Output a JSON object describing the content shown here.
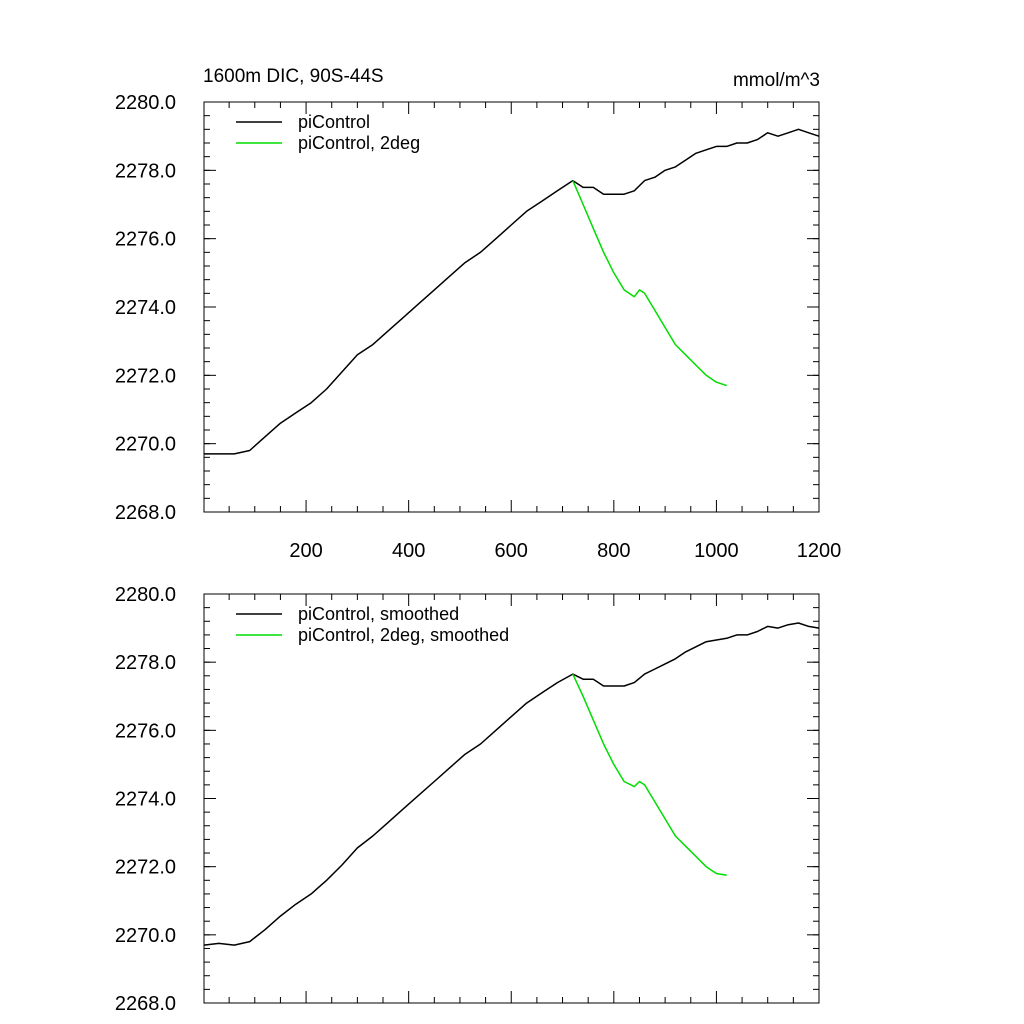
{
  "chart_data": [
    {
      "type": "line",
      "title": "1600m DIC, 90S-44S",
      "units": "mmol/m^3",
      "xlim": [
        1,
        1200
      ],
      "ylim": [
        2268.0,
        2280.0
      ],
      "xticks": [
        200,
        400,
        600,
        800,
        1000,
        1200
      ],
      "xtick_labels": [
        "200",
        "400",
        "600",
        "800",
        "1000",
        "1200"
      ],
      "yticks": [
        2268.0,
        2270.0,
        2272.0,
        2274.0,
        2276.0,
        2278.0,
        2280.0
      ],
      "ytick_labels": [
        "2268.0",
        "2270.0",
        "2272.0",
        "2274.0",
        "2276.0",
        "2278.0",
        "2280.0"
      ],
      "legend_position": "top-left",
      "series": [
        {
          "name": "piControl",
          "color": "#000000",
          "x": [
            1,
            30,
            60,
            90,
            120,
            150,
            180,
            210,
            240,
            270,
            300,
            330,
            360,
            390,
            420,
            450,
            480,
            510,
            540,
            570,
            600,
            630,
            660,
            690,
            720,
            740,
            760,
            780,
            800,
            820,
            840,
            860,
            880,
            900,
            920,
            940,
            960,
            980,
            1000,
            1020,
            1040,
            1060,
            1080,
            1100,
            1120,
            1140,
            1160,
            1180,
            1200
          ],
          "y": [
            2269.7,
            2269.7,
            2269.7,
            2269.8,
            2270.2,
            2270.6,
            2270.9,
            2271.2,
            2271.6,
            2272.1,
            2272.6,
            2272.9,
            2273.3,
            2273.7,
            2274.1,
            2274.5,
            2274.9,
            2275.3,
            2275.6,
            2276.0,
            2276.4,
            2276.8,
            2277.1,
            2277.4,
            2277.7,
            2277.5,
            2277.5,
            2277.3,
            2277.3,
            2277.3,
            2277.4,
            2277.7,
            2277.8,
            2278.0,
            2278.1,
            2278.3,
            2278.5,
            2278.6,
            2278.7,
            2278.7,
            2278.8,
            2278.8,
            2278.9,
            2279.1,
            2279.0,
            2279.1,
            2279.2,
            2279.1,
            2279.0
          ]
        },
        {
          "name": "piControl, 2deg",
          "color": "#00dd00",
          "x": [
            720,
            740,
            760,
            780,
            800,
            820,
            840,
            850,
            860,
            880,
            900,
            920,
            940,
            960,
            980,
            1000,
            1020
          ],
          "y": [
            2277.7,
            2277.0,
            2276.3,
            2275.6,
            2275.0,
            2274.5,
            2274.3,
            2274.5,
            2274.4,
            2273.9,
            2273.4,
            2272.9,
            2272.6,
            2272.3,
            2272.0,
            2271.8,
            2271.7
          ]
        }
      ]
    },
    {
      "type": "line",
      "title": "",
      "units": "",
      "xlim": [
        1,
        1200
      ],
      "ylim": [
        2268.0,
        2280.0
      ],
      "xticks": [
        200,
        400,
        600,
        800,
        1000,
        1200
      ],
      "xtick_labels": [],
      "yticks": [
        2268.0,
        2270.0,
        2272.0,
        2274.0,
        2276.0,
        2278.0,
        2280.0
      ],
      "ytick_labels": [
        "2268.0",
        "2270.0",
        "2272.0",
        "2274.0",
        "2276.0",
        "2278.0",
        "2280.0"
      ],
      "legend_position": "top-left",
      "series": [
        {
          "name": "piControl, smoothed",
          "color": "#000000",
          "x": [
            1,
            30,
            60,
            90,
            120,
            150,
            180,
            210,
            240,
            270,
            300,
            330,
            360,
            390,
            420,
            450,
            480,
            510,
            540,
            570,
            600,
            630,
            660,
            690,
            720,
            740,
            760,
            780,
            800,
            820,
            840,
            860,
            880,
            900,
            920,
            940,
            960,
            980,
            1000,
            1020,
            1040,
            1060,
            1080,
            1100,
            1120,
            1140,
            1160,
            1180,
            1200
          ],
          "y": [
            2269.7,
            2269.75,
            2269.7,
            2269.8,
            2270.15,
            2270.55,
            2270.9,
            2271.2,
            2271.6,
            2272.05,
            2272.55,
            2272.9,
            2273.3,
            2273.7,
            2274.1,
            2274.5,
            2274.9,
            2275.3,
            2275.6,
            2276.0,
            2276.4,
            2276.8,
            2277.1,
            2277.4,
            2277.65,
            2277.5,
            2277.5,
            2277.3,
            2277.3,
            2277.3,
            2277.4,
            2277.65,
            2277.8,
            2277.95,
            2278.1,
            2278.3,
            2278.45,
            2278.6,
            2278.65,
            2278.7,
            2278.8,
            2278.8,
            2278.9,
            2279.05,
            2279.0,
            2279.1,
            2279.15,
            2279.05,
            2279.0
          ]
        },
        {
          "name": "piControl, 2deg, smoothed",
          "color": "#00dd00",
          "x": [
            720,
            740,
            760,
            780,
            800,
            820,
            840,
            850,
            860,
            880,
            900,
            920,
            940,
            960,
            980,
            1000,
            1020
          ],
          "y": [
            2277.65,
            2277.0,
            2276.3,
            2275.6,
            2275.0,
            2274.5,
            2274.35,
            2274.5,
            2274.4,
            2273.9,
            2273.4,
            2272.9,
            2272.6,
            2272.3,
            2272.0,
            2271.8,
            2271.75
          ]
        }
      ]
    }
  ]
}
